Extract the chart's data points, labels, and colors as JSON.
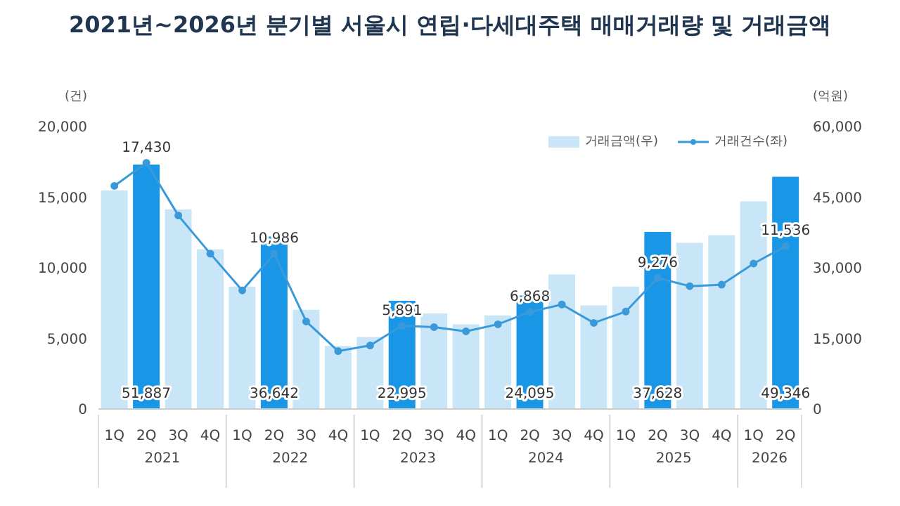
{
  "chart_data": {
    "type": "bar",
    "title": "2021년~2026년 분기별 서울시 연립·다세대주택 매매거래량 및 거래금액",
    "ylabel": "(건)",
    "y2label": "(억원)",
    "categories": [
      "1Q",
      "2Q",
      "3Q",
      "4Q",
      "1Q",
      "2Q",
      "3Q",
      "4Q",
      "1Q",
      "2Q",
      "3Q",
      "4Q",
      "1Q",
      "2Q",
      "3Q",
      "4Q",
      "1Q",
      "2Q",
      "3Q",
      "4Q",
      "1Q",
      "2Q"
    ],
    "annotations": [
      "2021",
      "2022",
      "2023",
      "2024",
      "2025",
      "2026"
    ],
    "series": [
      {
        "name": "거래금액(우)",
        "axis": "y2",
        "color": "#c9e6f8",
        "colors": [
          "#c9e6f8",
          "#1a96e6",
          "#c9e6f8",
          "#c9e6f8",
          "#c9e6f8",
          "#1a96e6",
          "#c9e6f8",
          "#c9e6f8",
          "#c9e6f8",
          "#1a96e6",
          "#c9e6f8",
          "#c9e6f8",
          "#c9e6f8",
          "#1a96e6",
          "#c9e6f8",
          "#c9e6f8",
          "#c9e6f8",
          "#1a96e6",
          "#c9e6f8",
          "#c9e6f8",
          "#c9e6f8",
          "#1a96e6"
        ],
        "values": [
          46400,
          51887,
          42400,
          33900,
          26000,
          36642,
          21100,
          13400,
          15300,
          22995,
          20300,
          18000,
          19900,
          24095,
          28600,
          22000,
          26000,
          37628,
          35300,
          36900,
          44100,
          49346
        ],
        "value_labels": [
          null,
          "51,887",
          null,
          null,
          null,
          "36,642",
          null,
          null,
          null,
          "22,995",
          null,
          null,
          null,
          "24,095",
          null,
          null,
          null,
          "37,628",
          null,
          null,
          null,
          "49,346"
        ]
      },
      {
        "name": "거래건수(좌)",
        "type": "line",
        "color": "#3a9ad9",
        "values": [
          15800,
          17430,
          13700,
          11000,
          8400,
          10986,
          6200,
          4100,
          4500,
          5891,
          5800,
          5500,
          6000,
          6868,
          7400,
          6100,
          6900,
          9276,
          8700,
          8800,
          10300,
          11536
        ],
        "value_labels": [
          null,
          "17,430",
          null,
          null,
          null,
          "10,986",
          null,
          null,
          null,
          "5,891",
          null,
          null,
          null,
          "6,868",
          null,
          null,
          null,
          "9,276",
          null,
          null,
          null,
          "11,536"
        ]
      }
    ],
    "ylim": [
      0,
      20000
    ],
    "yticks": [
      0,
      {
        "value": 5000,
        "label": "5,000"
      },
      {
        "value": 10000,
        "label": "10,000"
      },
      {
        "value": 15000,
        "label": "15,000"
      },
      {
        "value": 20000,
        "label": "20,000"
      }
    ],
    "y2lim": [
      0,
      60000
    ],
    "y2ticks": [
      0,
      {
        "value": 15000,
        "label": "15,000"
      },
      {
        "value": 30000,
        "label": "30,000"
      },
      {
        "value": 45000,
        "label": "45,000"
      },
      {
        "value": 60000,
        "label": "60,000"
      }
    ],
    "legend": "top right",
    "marker": "circle"
  }
}
